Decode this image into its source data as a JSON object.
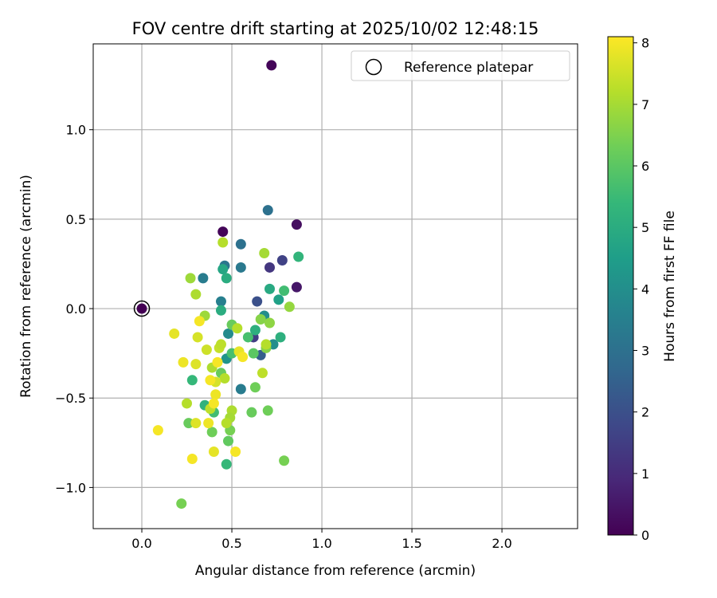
{
  "chart_data": {
    "type": "scatter",
    "title": "FOV centre drift starting at 2025/10/02 12:48:15",
    "xlabel": "Angular distance from reference (arcmin)",
    "ylabel": "Rotation from reference (arcmin)",
    "xlim": [
      -0.27,
      2.42
    ],
    "ylim": [
      -1.23,
      1.48
    ],
    "xticks": [
      0.0,
      0.5,
      1.0,
      1.5,
      2.0
    ],
    "xtick_labels": [
      "0.0",
      "0.5",
      "1.0",
      "1.5",
      "2.0"
    ],
    "yticks": [
      -1.0,
      -0.5,
      0.0,
      0.5,
      1.0
    ],
    "ytick_labels": [
      "−1.0",
      "−0.5",
      "0.0",
      "0.5",
      "1.0"
    ],
    "grid": true,
    "colorbar": {
      "label": "Hours from first FF file",
      "range": [
        0,
        8.1
      ],
      "ticks": [
        0,
        1,
        2,
        3,
        4,
        5,
        6,
        7,
        8
      ],
      "tick_labels": [
        "0",
        "1",
        "2",
        "3",
        "4",
        "5",
        "6",
        "7",
        "8"
      ],
      "colormap_stops": [
        "#440154",
        "#482878",
        "#3e4989",
        "#31688e",
        "#26828e",
        "#1f9e89",
        "#35b779",
        "#6ece58",
        "#b5de2b",
        "#fde725"
      ]
    },
    "legend": {
      "label": "Reference platepar",
      "position": "top-right"
    },
    "reference_point": {
      "x": 0.0,
      "y": 0.0
    },
    "points": [
      {
        "x": 0.0,
        "y": 0.0,
        "h": 0.0
      },
      {
        "x": 0.72,
        "y": 1.36,
        "h": 0.1
      },
      {
        "x": 0.45,
        "y": 0.43,
        "h": 0.1
      },
      {
        "x": 0.86,
        "y": 0.47,
        "h": 0.3
      },
      {
        "x": 0.86,
        "y": 0.12,
        "h": 0.5
      },
      {
        "x": 0.71,
        "y": 0.23,
        "h": 1.3
      },
      {
        "x": 0.78,
        "y": 0.27,
        "h": 1.6
      },
      {
        "x": 0.64,
        "y": 0.04,
        "h": 2.0
      },
      {
        "x": 0.62,
        "y": -0.16,
        "h": 1.5
      },
      {
        "x": 0.66,
        "y": -0.26,
        "h": 2.4
      },
      {
        "x": 0.7,
        "y": 0.55,
        "h": 3.0
      },
      {
        "x": 0.55,
        "y": 0.36,
        "h": 3.0
      },
      {
        "x": 0.46,
        "y": 0.24,
        "h": 3.2
      },
      {
        "x": 0.55,
        "y": 0.23,
        "h": 3.3
      },
      {
        "x": 0.34,
        "y": 0.17,
        "h": 3.4
      },
      {
        "x": 0.44,
        "y": 0.04,
        "h": 3.5
      },
      {
        "x": 0.55,
        "y": -0.45,
        "h": 3.4
      },
      {
        "x": 0.48,
        "y": -0.14,
        "h": 3.9
      },
      {
        "x": 0.68,
        "y": -0.04,
        "h": 4.0
      },
      {
        "x": 0.73,
        "y": -0.2,
        "h": 4.0
      },
      {
        "x": 0.47,
        "y": -0.28,
        "h": 4.2
      },
      {
        "x": 0.76,
        "y": 0.05,
        "h": 4.6
      },
      {
        "x": 0.71,
        "y": 0.11,
        "h": 4.9
      },
      {
        "x": 0.45,
        "y": 0.22,
        "h": 4.8
      },
      {
        "x": 0.47,
        "y": 0.17,
        "h": 5.0
      },
      {
        "x": 0.44,
        "y": -0.01,
        "h": 5.0
      },
      {
        "x": 0.63,
        "y": -0.12,
        "h": 5.1
      },
      {
        "x": 0.77,
        "y": -0.16,
        "h": 5.1
      },
      {
        "x": 0.87,
        "y": 0.29,
        "h": 5.3
      },
      {
        "x": 0.47,
        "y": -0.87,
        "h": 5.4
      },
      {
        "x": 0.28,
        "y": -0.4,
        "h": 5.4
      },
      {
        "x": 0.35,
        "y": -0.54,
        "h": 5.2
      },
      {
        "x": 0.4,
        "y": -0.58,
        "h": 5.6
      },
      {
        "x": 0.5,
        "y": -0.25,
        "h": 5.7
      },
      {
        "x": 0.79,
        "y": 0.1,
        "h": 5.6
      },
      {
        "x": 0.59,
        "y": -0.16,
        "h": 5.7
      },
      {
        "x": 0.62,
        "y": -0.25,
        "h": 6.0
      },
      {
        "x": 0.5,
        "y": -0.09,
        "h": 6.2
      },
      {
        "x": 0.44,
        "y": -0.36,
        "h": 6.2
      },
      {
        "x": 0.48,
        "y": -0.74,
        "h": 6.1
      },
      {
        "x": 0.63,
        "y": -0.44,
        "h": 6.3
      },
      {
        "x": 0.61,
        "y": -0.58,
        "h": 6.2
      },
      {
        "x": 0.7,
        "y": -0.57,
        "h": 6.3
      },
      {
        "x": 0.79,
        "y": -0.85,
        "h": 6.4
      },
      {
        "x": 0.26,
        "y": -0.64,
        "h": 6.2
      },
      {
        "x": 0.39,
        "y": -0.69,
        "h": 6.3
      },
      {
        "x": 0.49,
        "y": -0.68,
        "h": 6.4
      },
      {
        "x": 0.22,
        "y": -1.09,
        "h": 6.4
      },
      {
        "x": 0.82,
        "y": 0.01,
        "h": 6.8
      },
      {
        "x": 0.66,
        "y": -0.06,
        "h": 6.6
      },
      {
        "x": 0.69,
        "y": -0.22,
        "h": 6.6
      },
      {
        "x": 0.71,
        "y": -0.08,
        "h": 6.7
      },
      {
        "x": 0.68,
        "y": 0.31,
        "h": 7.0
      },
      {
        "x": 0.27,
        "y": 0.17,
        "h": 6.9
      },
      {
        "x": 0.3,
        "y": 0.08,
        "h": 7.1
      },
      {
        "x": 0.35,
        "y": -0.04,
        "h": 6.9
      },
      {
        "x": 0.45,
        "y": 0.37,
        "h": 7.2
      },
      {
        "x": 0.39,
        "y": -0.33,
        "h": 7.1
      },
      {
        "x": 0.46,
        "y": -0.39,
        "h": 7.2
      },
      {
        "x": 0.5,
        "y": -0.57,
        "h": 7.1
      },
      {
        "x": 0.49,
        "y": -0.61,
        "h": 7.0
      },
      {
        "x": 0.47,
        "y": -0.64,
        "h": 7.2
      },
      {
        "x": 0.38,
        "y": -0.56,
        "h": 7.3
      },
      {
        "x": 0.25,
        "y": -0.53,
        "h": 7.2
      },
      {
        "x": 0.67,
        "y": -0.36,
        "h": 7.3
      },
      {
        "x": 0.69,
        "y": -0.2,
        "h": 7.2
      },
      {
        "x": 0.53,
        "y": -0.11,
        "h": 7.2
      },
      {
        "x": 0.43,
        "y": -0.22,
        "h": 7.4
      },
      {
        "x": 0.44,
        "y": -0.2,
        "h": 7.3
      },
      {
        "x": 0.36,
        "y": -0.23,
        "h": 7.5
      },
      {
        "x": 0.31,
        "y": -0.16,
        "h": 7.6
      },
      {
        "x": 0.18,
        "y": -0.14,
        "h": 7.8
      },
      {
        "x": 0.3,
        "y": -0.31,
        "h": 7.7
      },
      {
        "x": 0.41,
        "y": -0.41,
        "h": 7.6
      },
      {
        "x": 0.41,
        "y": -0.48,
        "h": 7.9
      },
      {
        "x": 0.3,
        "y": -0.64,
        "h": 7.7
      },
      {
        "x": 0.4,
        "y": -0.8,
        "h": 7.8
      },
      {
        "x": 0.52,
        "y": -0.8,
        "h": 8.0
      },
      {
        "x": 0.28,
        "y": -0.84,
        "h": 8.0
      },
      {
        "x": 0.09,
        "y": -0.68,
        "h": 8.0
      },
      {
        "x": 0.37,
        "y": -0.64,
        "h": 7.9
      },
      {
        "x": 0.23,
        "y": -0.3,
        "h": 7.9
      },
      {
        "x": 0.38,
        "y": -0.4,
        "h": 8.0
      },
      {
        "x": 0.42,
        "y": -0.3,
        "h": 8.0
      },
      {
        "x": 0.54,
        "y": -0.24,
        "h": 7.8
      },
      {
        "x": 0.56,
        "y": -0.27,
        "h": 8.0
      },
      {
        "x": 0.32,
        "y": -0.07,
        "h": 8.0
      },
      {
        "x": 0.4,
        "y": -0.53,
        "h": 8.0
      }
    ]
  }
}
